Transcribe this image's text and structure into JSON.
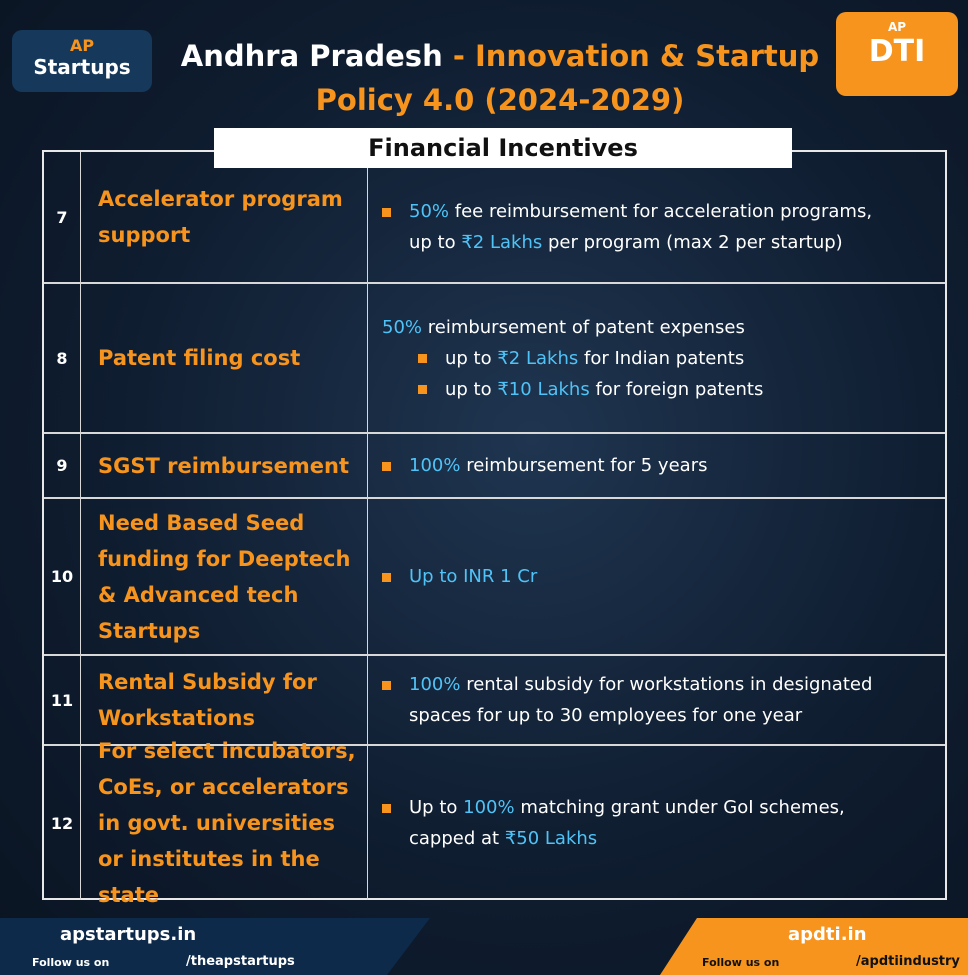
{
  "header": {
    "logo_left": {
      "top": "AP",
      "bottom": "Startups"
    },
    "title": {
      "lead": "Andhra Pradesh",
      "rest": "- Innovation & Startup Policy 4.0 (2024-2029)"
    },
    "logo_right": {
      "badge": "AP",
      "mark": "DTI"
    }
  },
  "section_title": "Financial Incentives",
  "rows": [
    {
      "number": "7",
      "label": "Accelerator program support",
      "details": [
        {
          "bullet": true,
          "indent": false,
          "segments": [
            {
              "text": "50%",
              "highlight": true
            },
            {
              "text": " fee reimbursement for acceleration programs,",
              "highlight": false
            }
          ]
        },
        {
          "bullet": false,
          "indent": false,
          "segments": [
            {
              "text": "up to ",
              "highlight": false
            },
            {
              "text": "₹2 Lakhs",
              "highlight": true
            },
            {
              "text": " per program (max 2 per startup)",
              "highlight": false
            }
          ]
        }
      ]
    },
    {
      "number": "8",
      "label": "Patent filing cost",
      "details": [
        {
          "bullet": false,
          "indent": false,
          "segments": [
            {
              "text": "50%",
              "highlight": true
            },
            {
              "text": " reimbursement of patent expenses",
              "highlight": false
            }
          ]
        },
        {
          "bullet": true,
          "indent": true,
          "segments": [
            {
              "text": "up to ",
              "highlight": false
            },
            {
              "text": "₹2 Lakhs",
              "highlight": true
            },
            {
              "text": " for Indian patents",
              "highlight": false
            }
          ]
        },
        {
          "bullet": true,
          "indent": true,
          "segments": [
            {
              "text": "up to ",
              "highlight": false
            },
            {
              "text": "₹10 Lakhs",
              "highlight": true
            },
            {
              "text": " for foreign patents",
              "highlight": false
            }
          ]
        }
      ]
    },
    {
      "number": "9",
      "label": "SGST reimbursement",
      "details": [
        {
          "bullet": true,
          "indent": false,
          "segments": [
            {
              "text": "100%",
              "highlight": true
            },
            {
              "text": " reimbursement for 5 years",
              "highlight": false
            }
          ]
        }
      ]
    },
    {
      "number": "10",
      "label": "Need Based Seed funding for Deeptech & Advanced tech Startups",
      "details": [
        {
          "bullet": true,
          "indent": false,
          "segments": [
            {
              "text": "Up to INR 1 Cr",
              "highlight": true
            }
          ]
        }
      ]
    },
    {
      "number": "11",
      "label": "Rental Subsidy for Workstations",
      "details": [
        {
          "bullet": true,
          "indent": false,
          "segments": [
            {
              "text": "100%",
              "highlight": true
            },
            {
              "text": " rental subsidy for workstations in designated",
              "highlight": false
            }
          ]
        },
        {
          "bullet": false,
          "indent": false,
          "segments": [
            {
              "text": "spaces for up to 30 employees for one year",
              "highlight": false
            }
          ]
        }
      ]
    },
    {
      "number": "12",
      "label": "For select incubators, CoEs, or accelerators in govt. universities or institutes in the state",
      "details": [
        {
          "bullet": true,
          "indent": false,
          "segments": [
            {
              "text": "Up to ",
              "highlight": false
            },
            {
              "text": "100%",
              "highlight": true
            },
            {
              "text": " matching grant under GoI schemes,",
              "highlight": false
            }
          ]
        },
        {
          "bullet": false,
          "indent": false,
          "segments": [
            {
              "text": "capped at ",
              "highlight": false
            },
            {
              "text": "₹50 Lakhs",
              "highlight": true
            }
          ]
        }
      ]
    }
  ],
  "footer": {
    "left": {
      "site": "apstartups.in",
      "follow": "Follow us on",
      "handle": "/theapstartups"
    },
    "right": {
      "site": "apdti.in",
      "follow": "Follow us on",
      "handle": "/apdtiindustry"
    }
  }
}
